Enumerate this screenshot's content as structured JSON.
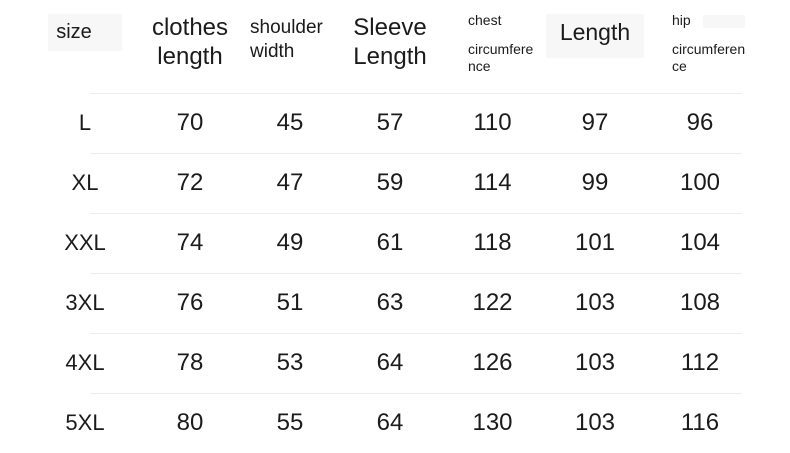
{
  "colors": {
    "background": "#ffffff",
    "text": "#1b1b1b",
    "divider": "#ececec",
    "header_highlight": "#f7f7f7"
  },
  "header": {
    "size": "size",
    "clothes_length": "clothes length",
    "shoulder_width": "shoulder width",
    "sleeve_length": "Sleeve Length",
    "chest_line1": "chest",
    "chest_line2": "circumference",
    "length": "Length",
    "hip_line1": "hip",
    "hip_line2": "circumference"
  },
  "chart_data": {
    "type": "table",
    "title": "",
    "columns": [
      "size",
      "clothes length",
      "shoulder width",
      "Sleeve Length",
      "chest circumference",
      "Length",
      "hip circumference"
    ],
    "rows": [
      [
        "L",
        70,
        45,
        57,
        110,
        97,
        96
      ],
      [
        "XL",
        72,
        47,
        59,
        114,
        99,
        100
      ],
      [
        "XXL",
        74,
        49,
        61,
        118,
        101,
        104
      ],
      [
        "3XL",
        76,
        51,
        63,
        122,
        103,
        108
      ],
      [
        "4XL",
        78,
        53,
        64,
        126,
        103,
        112
      ],
      [
        "5XL",
        80,
        55,
        64,
        130,
        103,
        116
      ]
    ]
  }
}
